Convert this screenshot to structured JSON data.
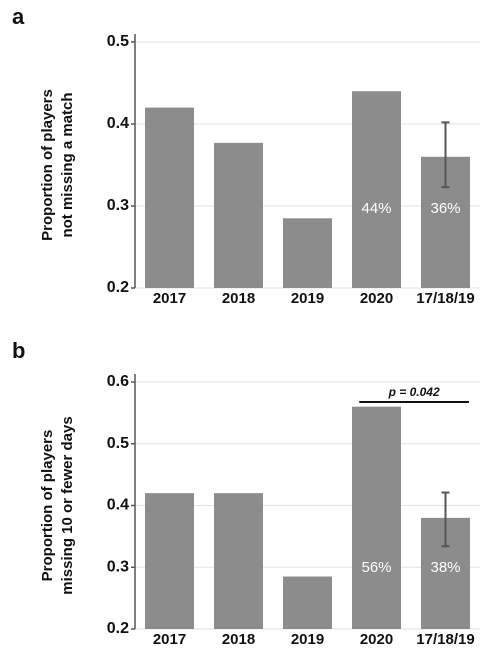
{
  "chart_data": [
    {
      "type": "bar",
      "title": "a",
      "ylabel": [
        "Proportion of players",
        "not missing a match"
      ],
      "categories": [
        "2017",
        "2018",
        "2019",
        "2020",
        "17/18/19"
      ],
      "values": [
        0.42,
        0.377,
        0.285,
        0.44,
        0.36
      ],
      "value_labels": [
        null,
        null,
        null,
        "44%",
        "36%"
      ],
      "ci_low": [
        null,
        null,
        null,
        null,
        0.323
      ],
      "ci_high": [
        null,
        null,
        null,
        null,
        0.402
      ],
      "color": "#8c8c8c",
      "ylim": [
        0.2,
        0.5
      ],
      "yticks": [
        0.2,
        0.3,
        0.4,
        0.5
      ],
      "grid": true
    },
    {
      "type": "bar",
      "title": "b",
      "ylabel": [
        "Proportion of players",
        "missing 10 or fewer days"
      ],
      "categories": [
        "2017",
        "2018",
        "2019",
        "2020",
        "17/18/19"
      ],
      "values": [
        0.42,
        0.42,
        0.285,
        0.56,
        0.38
      ],
      "value_labels": [
        null,
        null,
        null,
        "56%",
        "38%"
      ],
      "ci_low": [
        null,
        null,
        null,
        null,
        0.334
      ],
      "ci_high": [
        null,
        null,
        null,
        null,
        0.421
      ],
      "annotation": "p = 0.042",
      "color": "#8c8c8c",
      "ylim": [
        0.2,
        0.6
      ],
      "yticks": [
        0.2,
        0.3,
        0.4,
        0.5,
        0.6
      ],
      "grid": true
    }
  ]
}
